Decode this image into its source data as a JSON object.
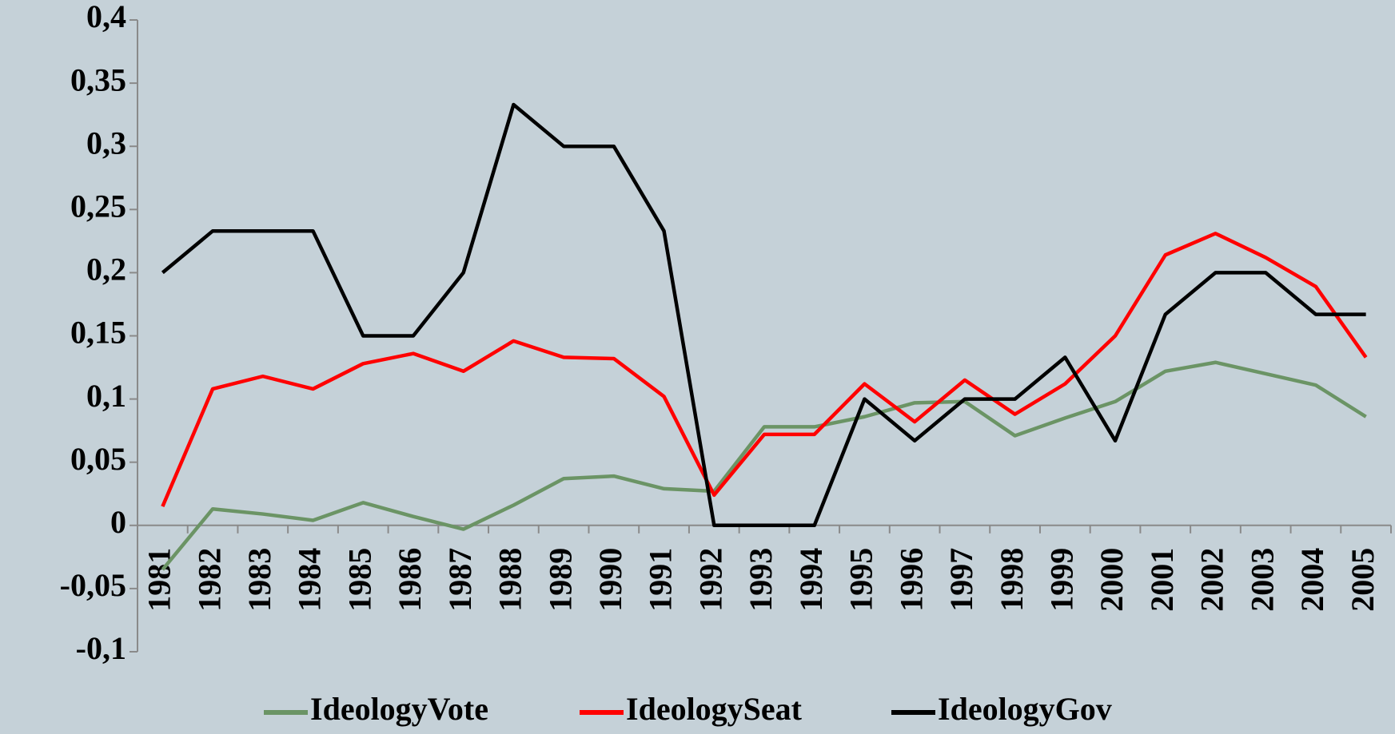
{
  "chart_data": {
    "type": "line",
    "categories": [
      "1981",
      "1982",
      "1983",
      "1984",
      "1985",
      "1986",
      "1987",
      "1988",
      "1989",
      "1990",
      "1991",
      "1992",
      "1993",
      "1994",
      "1995",
      "1996",
      "1997",
      "1998",
      "1999",
      "2000",
      "2001",
      "2002",
      "2003",
      "2004",
      "2005"
    ],
    "series": [
      {
        "name": "IdeologyVote",
        "color": "#6b9465",
        "values": [
          -0.035,
          0.013,
          0.009,
          0.004,
          0.018,
          0.007,
          -0.003,
          0.016,
          0.037,
          0.039,
          0.029,
          0.027,
          0.078,
          0.078,
          0.086,
          0.097,
          0.098,
          0.071,
          0.085,
          0.098,
          0.122,
          0.129,
          0.12,
          0.111,
          0.086
        ]
      },
      {
        "name": "IdeologySeat",
        "color": "#ff0000",
        "values": [
          0.015,
          0.108,
          0.118,
          0.108,
          0.128,
          0.136,
          0.122,
          0.146,
          0.133,
          0.132,
          0.102,
          0.024,
          0.072,
          0.072,
          0.112,
          0.082,
          0.115,
          0.088,
          0.112,
          0.15,
          0.214,
          0.231,
          0.212,
          0.189,
          0.133
        ]
      },
      {
        "name": "IdeologyGov",
        "color": "#000000",
        "values": [
          0.2,
          0.233,
          0.233,
          0.233,
          0.15,
          0.15,
          0.2,
          0.333,
          0.3,
          0.3,
          0.233,
          0,
          0,
          0,
          0.1,
          0.067,
          0.1,
          0.1,
          0.133,
          0.067,
          0.167,
          0.2,
          0.2,
          0.167,
          0.167
        ]
      }
    ],
    "ylim": [
      -0.1,
      0.4
    ],
    "yticks": [
      {
        "value": -0.1,
        "label": "-0,1"
      },
      {
        "value": -0.05,
        "label": "-0,05"
      },
      0,
      {
        "value": 0.05,
        "label": "0,05"
      },
      {
        "value": 0.1,
        "label": "0,1"
      },
      {
        "value": 0.15,
        "label": "0,15"
      },
      {
        "value": 0.2,
        "label": "0,2"
      },
      {
        "value": 0.25,
        "label": "0,25"
      },
      {
        "value": 0.3,
        "label": "0,3"
      },
      {
        "value": 0.35,
        "label": "0,35"
      },
      {
        "value": 0.4,
        "label": "0,4"
      }
    ],
    "grid": false,
    "legend": "bottom"
  }
}
